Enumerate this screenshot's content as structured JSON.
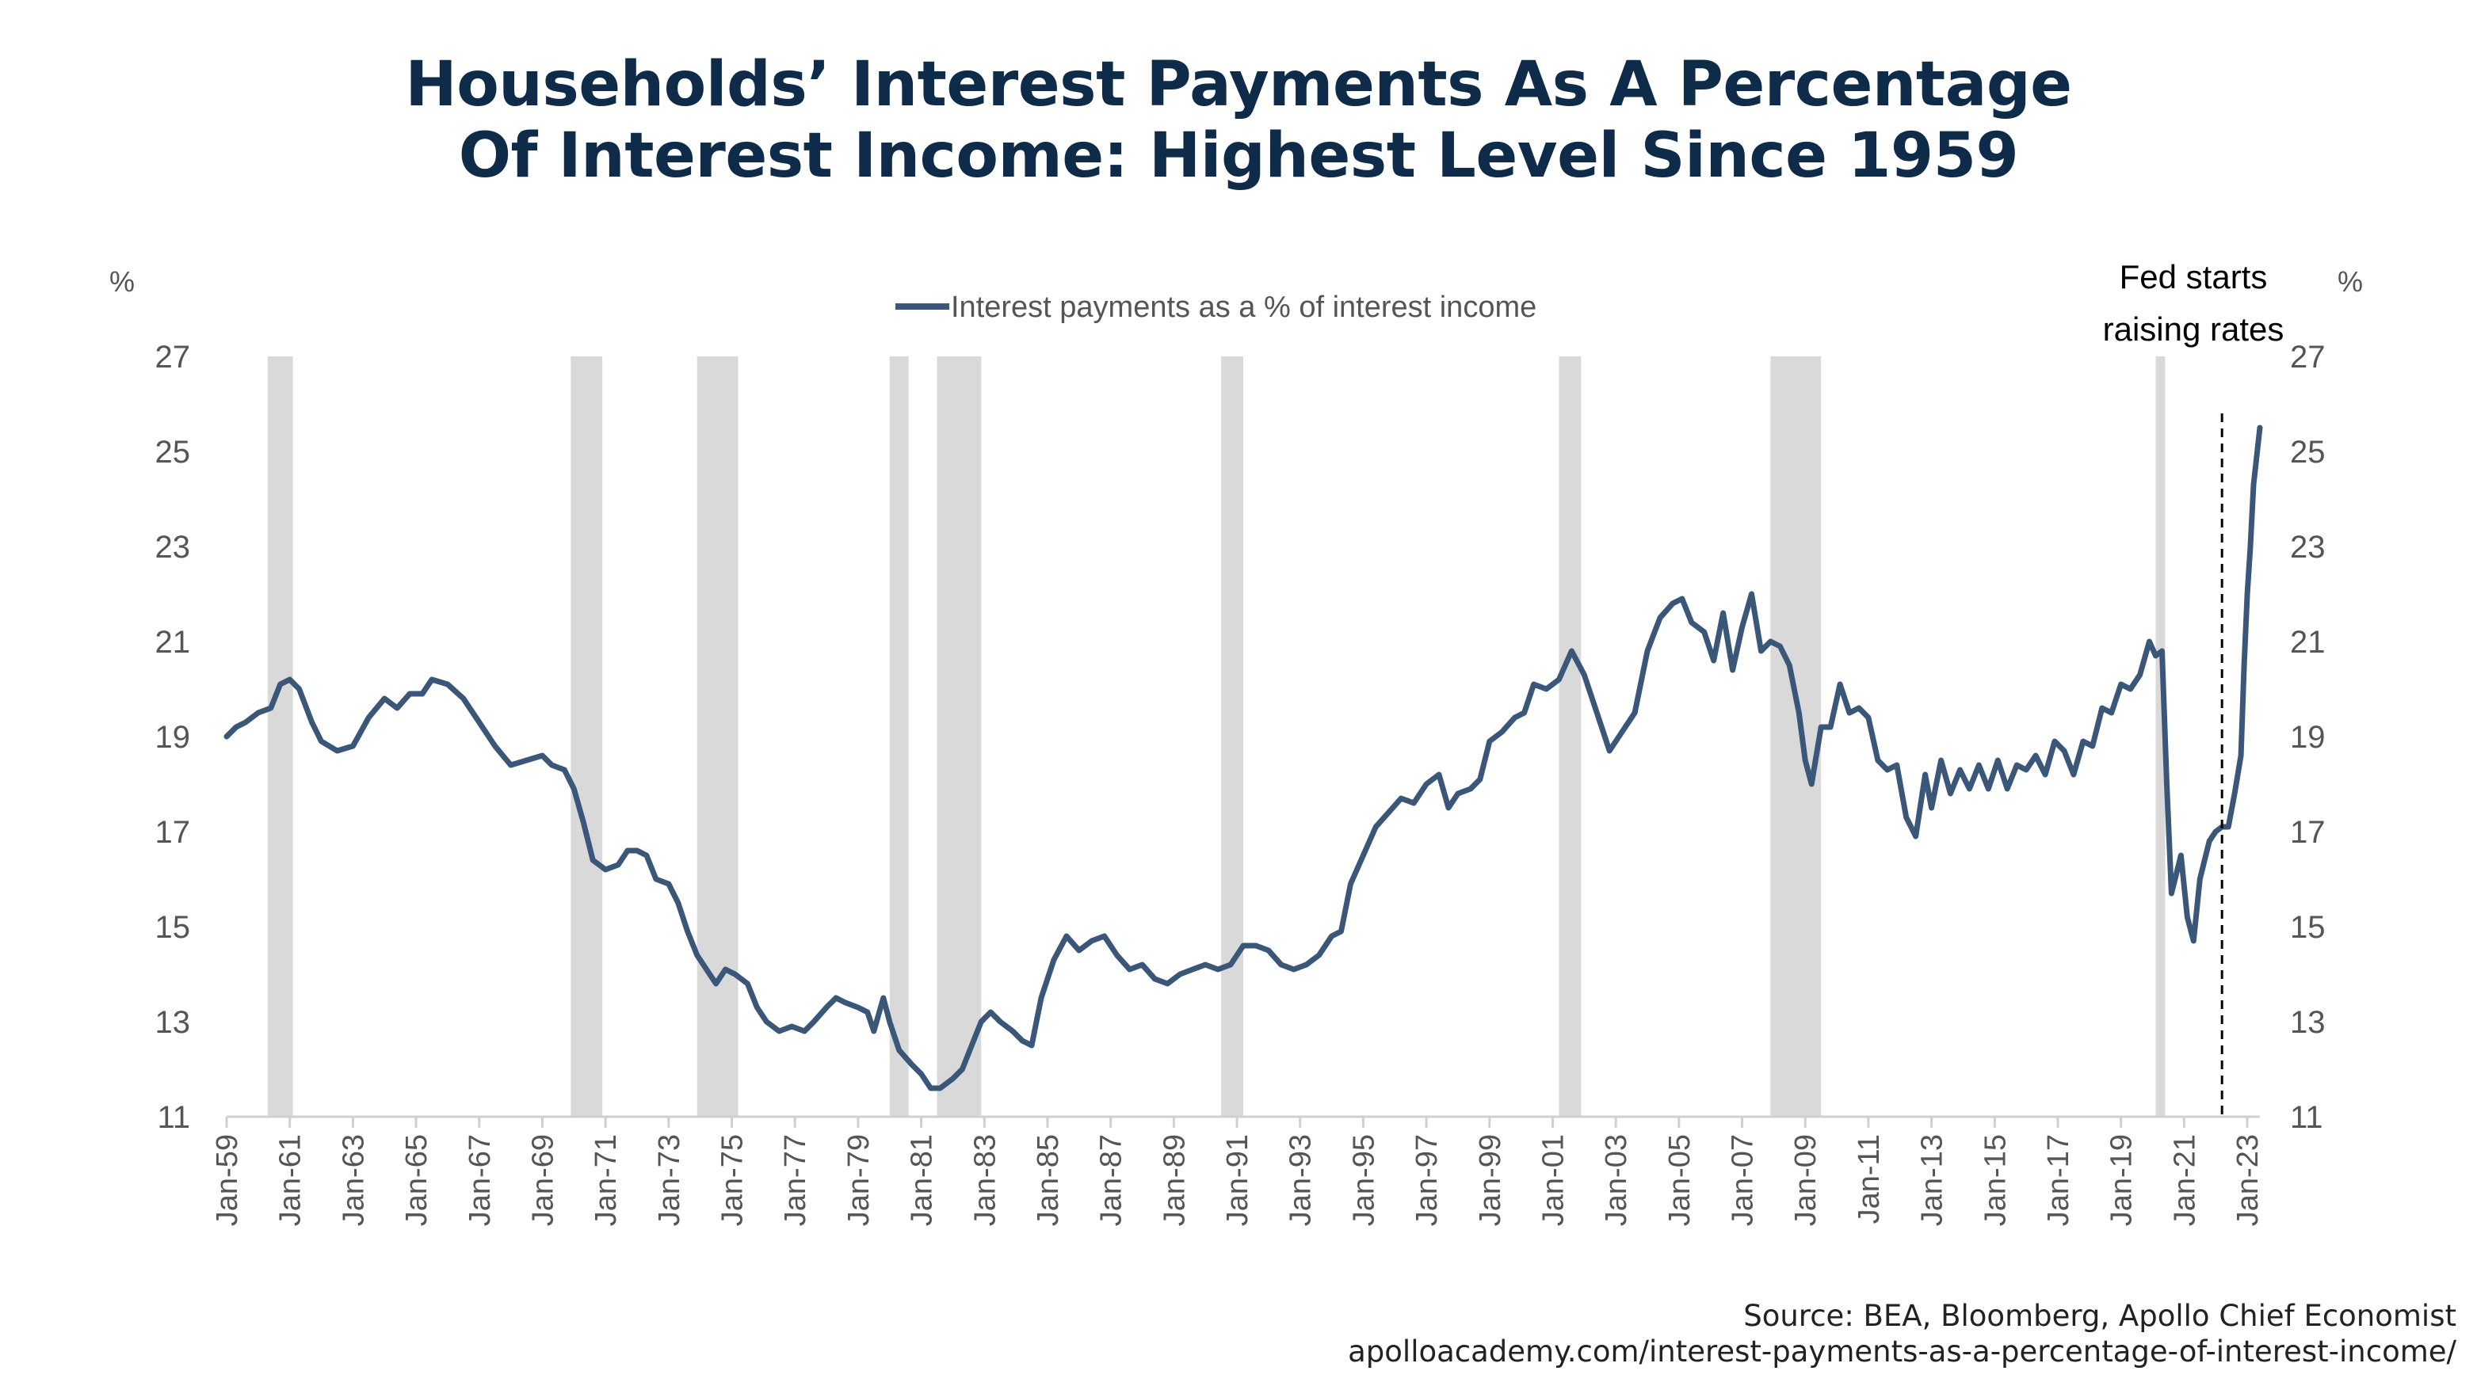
{
  "title_lines": [
    "Households’ Interest Payments As A Percentage",
    "Of Interest Income: Highest Level Since 1959"
  ],
  "footer": {
    "source": "Source: BEA, Bloomberg, Apollo Chief Economist",
    "url": "apolloacademy.com/interest-payments-as-a-percentage-of-interest-income/"
  },
  "chart_data": {
    "type": "line",
    "title": "Households’ Interest Payments As A Percentage Of Interest Income: Highest Level Since 1959",
    "ylabel_left": "%",
    "ylabel_right": "%",
    "ylim": [
      11,
      27
    ],
    "y_ticks": [
      11,
      13,
      15,
      17,
      19,
      21,
      23,
      25,
      27
    ],
    "xlim": [
      1959.0,
      2023.4
    ],
    "x_tick_labels": [
      "Jan-59",
      "Jan-61",
      "Jan-63",
      "Jan-65",
      "Jan-67",
      "Jan-69",
      "Jan-71",
      "Jan-73",
      "Jan-75",
      "Jan-77",
      "Jan-79",
      "Jan-81",
      "Jan-83",
      "Jan-85",
      "Jan-87",
      "Jan-89",
      "Jan-91",
      "Jan-93",
      "Jan-95",
      "Jan-97",
      "Jan-99",
      "Jan-01",
      "Jan-03",
      "Jan-05",
      "Jan-07",
      "Jan-09",
      "Jan-11",
      "Jan-13",
      "Jan-15",
      "Jan-17",
      "Jan-19",
      "Jan-21",
      "Jan-23"
    ],
    "x_tick_years": [
      1959,
      1961,
      1963,
      1965,
      1967,
      1969,
      1971,
      1973,
      1975,
      1977,
      1979,
      1981,
      1983,
      1985,
      1987,
      1989,
      1991,
      1993,
      1995,
      1997,
      1999,
      2001,
      2003,
      2005,
      2007,
      2009,
      2011,
      2013,
      2015,
      2017,
      2019,
      2021,
      2023
    ],
    "legend_position": "top-center",
    "grid": false,
    "colors": {
      "line": "#3a5678",
      "recession": "#d9d9d9",
      "axis": "#d0d0d0",
      "tick_text": "#555555",
      "title": "#0f2b4a"
    },
    "recessions": [
      [
        1960.3,
        1961.1
      ],
      [
        1969.9,
        1970.9
      ],
      [
        1973.9,
        1975.2
      ],
      [
        1980.0,
        1980.6
      ],
      [
        1981.5,
        1982.9
      ],
      [
        1990.5,
        1991.2
      ],
      [
        2001.2,
        2001.9
      ],
      [
        2007.9,
        2009.5
      ],
      [
        2020.1,
        2020.4
      ]
    ],
    "annotation": {
      "text_lines": [
        "Fed starts",
        "raising rates"
      ],
      "x": 2022.2
    },
    "series": [
      {
        "name": "Interest payments as a % of interest income",
        "points": [
          [
            1959.0,
            19.0
          ],
          [
            1959.3,
            19.2
          ],
          [
            1959.6,
            19.3
          ],
          [
            1960.0,
            19.5
          ],
          [
            1960.4,
            19.6
          ],
          [
            1960.7,
            20.1
          ],
          [
            1961.0,
            20.2
          ],
          [
            1961.3,
            20.0
          ],
          [
            1961.7,
            19.3
          ],
          [
            1962.0,
            18.9
          ],
          [
            1962.5,
            18.7
          ],
          [
            1963.0,
            18.8
          ],
          [
            1963.5,
            19.4
          ],
          [
            1964.0,
            19.8
          ],
          [
            1964.4,
            19.6
          ],
          [
            1964.8,
            19.9
          ],
          [
            1965.2,
            19.9
          ],
          [
            1965.5,
            20.2
          ],
          [
            1966.0,
            20.1
          ],
          [
            1966.5,
            19.8
          ],
          [
            1967.0,
            19.3
          ],
          [
            1967.5,
            18.8
          ],
          [
            1968.0,
            18.4
          ],
          [
            1968.5,
            18.5
          ],
          [
            1969.0,
            18.6
          ],
          [
            1969.3,
            18.4
          ],
          [
            1969.7,
            18.3
          ],
          [
            1970.0,
            17.9
          ],
          [
            1970.3,
            17.2
          ],
          [
            1970.6,
            16.4
          ],
          [
            1971.0,
            16.2
          ],
          [
            1971.4,
            16.3
          ],
          [
            1971.7,
            16.6
          ],
          [
            1972.0,
            16.6
          ],
          [
            1972.3,
            16.5
          ],
          [
            1972.6,
            16.0
          ],
          [
            1973.0,
            15.9
          ],
          [
            1973.3,
            15.5
          ],
          [
            1973.6,
            14.9
          ],
          [
            1973.9,
            14.4
          ],
          [
            1974.2,
            14.1
          ],
          [
            1974.5,
            13.8
          ],
          [
            1974.8,
            14.1
          ],
          [
            1975.1,
            14.0
          ],
          [
            1975.5,
            13.8
          ],
          [
            1975.8,
            13.3
          ],
          [
            1976.1,
            13.0
          ],
          [
            1976.5,
            12.8
          ],
          [
            1976.9,
            12.9
          ],
          [
            1977.3,
            12.8
          ],
          [
            1977.6,
            13.0
          ],
          [
            1978.0,
            13.3
          ],
          [
            1978.3,
            13.5
          ],
          [
            1978.6,
            13.4
          ],
          [
            1979.0,
            13.3
          ],
          [
            1979.3,
            13.2
          ],
          [
            1979.5,
            12.8
          ],
          [
            1979.8,
            13.5
          ],
          [
            1980.0,
            13.0
          ],
          [
            1980.3,
            12.4
          ],
          [
            1980.7,
            12.1
          ],
          [
            1981.0,
            11.9
          ],
          [
            1981.3,
            11.6
          ],
          [
            1981.6,
            11.6
          ],
          [
            1982.0,
            11.8
          ],
          [
            1982.3,
            12.0
          ],
          [
            1982.6,
            12.5
          ],
          [
            1982.9,
            13.0
          ],
          [
            1983.2,
            13.2
          ],
          [
            1983.5,
            13.0
          ],
          [
            1983.9,
            12.8
          ],
          [
            1984.2,
            12.6
          ],
          [
            1984.5,
            12.5
          ],
          [
            1984.8,
            13.5
          ],
          [
            1985.2,
            14.3
          ],
          [
            1985.6,
            14.8
          ],
          [
            1986.0,
            14.5
          ],
          [
            1986.4,
            14.7
          ],
          [
            1986.8,
            14.8
          ],
          [
            1987.2,
            14.4
          ],
          [
            1987.6,
            14.1
          ],
          [
            1988.0,
            14.2
          ],
          [
            1988.4,
            13.9
          ],
          [
            1988.8,
            13.8
          ],
          [
            1989.2,
            14.0
          ],
          [
            1989.6,
            14.1
          ],
          [
            1990.0,
            14.2
          ],
          [
            1990.4,
            14.1
          ],
          [
            1990.8,
            14.2
          ],
          [
            1991.2,
            14.6
          ],
          [
            1991.6,
            14.6
          ],
          [
            1992.0,
            14.5
          ],
          [
            1992.4,
            14.2
          ],
          [
            1992.8,
            14.1
          ],
          [
            1993.2,
            14.2
          ],
          [
            1993.6,
            14.4
          ],
          [
            1994.0,
            14.8
          ],
          [
            1994.3,
            14.9
          ],
          [
            1994.6,
            15.9
          ],
          [
            1995.0,
            16.5
          ],
          [
            1995.4,
            17.1
          ],
          [
            1995.8,
            17.4
          ],
          [
            1996.2,
            17.7
          ],
          [
            1996.6,
            17.6
          ],
          [
            1997.0,
            18.0
          ],
          [
            1997.4,
            18.2
          ],
          [
            1997.7,
            17.5
          ],
          [
            1998.0,
            17.8
          ],
          [
            1998.4,
            17.9
          ],
          [
            1998.7,
            18.1
          ],
          [
            1999.0,
            18.9
          ],
          [
            1999.4,
            19.1
          ],
          [
            1999.8,
            19.4
          ],
          [
            2000.1,
            19.5
          ],
          [
            2000.4,
            20.1
          ],
          [
            2000.8,
            20.0
          ],
          [
            2001.2,
            20.2
          ],
          [
            2001.6,
            20.8
          ],
          [
            2002.0,
            20.3
          ],
          [
            2002.4,
            19.5
          ],
          [
            2002.8,
            18.7
          ],
          [
            2003.2,
            19.1
          ],
          [
            2003.6,
            19.5
          ],
          [
            2004.0,
            20.8
          ],
          [
            2004.4,
            21.5
          ],
          [
            2004.8,
            21.8
          ],
          [
            2005.1,
            21.9
          ],
          [
            2005.4,
            21.4
          ],
          [
            2005.8,
            21.2
          ],
          [
            2006.1,
            20.6
          ],
          [
            2006.4,
            21.6
          ],
          [
            2006.7,
            20.4
          ],
          [
            2007.0,
            21.3
          ],
          [
            2007.3,
            22.0
          ],
          [
            2007.6,
            20.8
          ],
          [
            2007.9,
            21.0
          ],
          [
            2008.2,
            20.9
          ],
          [
            2008.5,
            20.5
          ],
          [
            2008.8,
            19.5
          ],
          [
            2009.0,
            18.5
          ],
          [
            2009.2,
            18.0
          ],
          [
            2009.5,
            19.2
          ],
          [
            2009.8,
            19.2
          ],
          [
            2010.1,
            20.1
          ],
          [
            2010.4,
            19.5
          ],
          [
            2010.7,
            19.6
          ],
          [
            2011.0,
            19.4
          ],
          [
            2011.3,
            18.5
          ],
          [
            2011.6,
            18.3
          ],
          [
            2011.9,
            18.4
          ],
          [
            2012.2,
            17.3
          ],
          [
            2012.5,
            16.9
          ],
          [
            2012.8,
            18.2
          ],
          [
            2013.0,
            17.5
          ],
          [
            2013.3,
            18.5
          ],
          [
            2013.6,
            17.8
          ],
          [
            2013.9,
            18.3
          ],
          [
            2014.2,
            17.9
          ],
          [
            2014.5,
            18.4
          ],
          [
            2014.8,
            17.9
          ],
          [
            2015.1,
            18.5
          ],
          [
            2015.4,
            17.9
          ],
          [
            2015.7,
            18.4
          ],
          [
            2016.0,
            18.3
          ],
          [
            2016.3,
            18.6
          ],
          [
            2016.6,
            18.2
          ],
          [
            2016.9,
            18.9
          ],
          [
            2017.2,
            18.7
          ],
          [
            2017.5,
            18.2
          ],
          [
            2017.8,
            18.9
          ],
          [
            2018.1,
            18.8
          ],
          [
            2018.4,
            19.6
          ],
          [
            2018.7,
            19.5
          ],
          [
            2019.0,
            20.1
          ],
          [
            2019.3,
            20.0
          ],
          [
            2019.6,
            20.3
          ],
          [
            2019.9,
            21.0
          ],
          [
            2020.1,
            20.7
          ],
          [
            2020.3,
            20.8
          ],
          [
            2020.45,
            18.0
          ],
          [
            2020.6,
            15.7
          ],
          [
            2020.9,
            16.5
          ],
          [
            2021.1,
            15.2
          ],
          [
            2021.3,
            14.7
          ],
          [
            2021.5,
            16.0
          ],
          [
            2021.8,
            16.8
          ],
          [
            2022.0,
            17.0
          ],
          [
            2022.2,
            17.1
          ],
          [
            2022.4,
            17.1
          ],
          [
            2022.6,
            17.8
          ],
          [
            2022.8,
            18.6
          ],
          [
            2022.9,
            20.5
          ],
          [
            2023.0,
            22.0
          ],
          [
            2023.1,
            23.0
          ],
          [
            2023.2,
            24.3
          ],
          [
            2023.4,
            25.5
          ]
        ]
      }
    ]
  }
}
